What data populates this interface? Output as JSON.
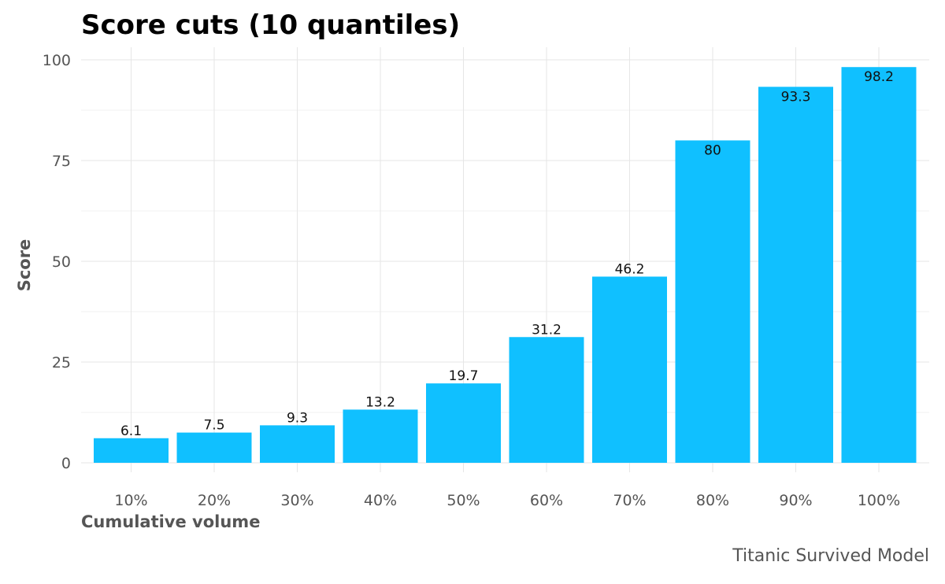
{
  "chart_data": {
    "type": "bar",
    "title": "Score cuts (10 quantiles)",
    "caption": "Titanic Survived Model",
    "xlabel": "Cumulative volume",
    "ylabel": "Score",
    "categories": [
      "10%",
      "20%",
      "30%",
      "40%",
      "50%",
      "60%",
      "70%",
      "80%",
      "90%",
      "100%"
    ],
    "values": [
      6.1,
      7.5,
      9.3,
      13.2,
      19.7,
      31.2,
      46.2,
      80,
      93.3,
      98.2
    ],
    "data_labels": [
      "6.1",
      "7.5",
      "9.3",
      "13.2",
      "19.7",
      "31.2",
      "46.2",
      "80",
      "93.3",
      "98.2"
    ],
    "ylim": [
      0,
      100
    ],
    "yticks": [
      0,
      25,
      50,
      75,
      100
    ],
    "ytick_labels": [
      "0",
      "25",
      "50",
      "75",
      "100"
    ],
    "grid": true,
    "legend": "none",
    "colors": {
      "bar": "#10c0ff",
      "grid": "#e6e6e6",
      "text": "#555555"
    }
  }
}
